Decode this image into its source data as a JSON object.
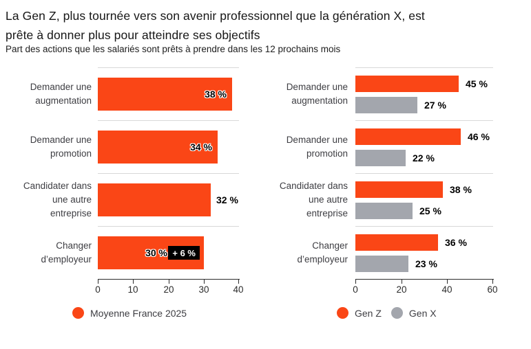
{
  "header": {
    "title_line1": "La Gen Z, plus tournée vers son avenir professionnel que la génération X, est",
    "title_line2": "prête à donner plus pour atteindre ses objectifs",
    "subtitle": "Part des actions que les salariés sont prêts à prendre dans les 12 prochains mois"
  },
  "colors": {
    "orange": "#FA4616",
    "gray": "#A3A6AD",
    "separator": "#D8D8D8",
    "axis": "#2B2B2B",
    "badge_bg": "#000000",
    "badge_text": "#FFFFFF"
  },
  "chart_data": [
    {
      "type": "bar",
      "orientation": "horizontal",
      "categories": [
        [
          "Demander une",
          "augmentation"
        ],
        [
          "Demander une",
          "promotion"
        ],
        [
          "Candidater dans",
          "une autre",
          "entreprise"
        ],
        [
          "Changer",
          "d’employeur"
        ]
      ],
      "series": [
        {
          "name": "Moyenne France 2025",
          "color": "orange",
          "values": [
            38,
            34,
            32,
            30
          ],
          "labels": [
            "38 %",
            "34 %",
            "32 %",
            "30 %"
          ],
          "label_placement": [
            "inside",
            "inside",
            "outside",
            "inside"
          ]
        }
      ],
      "annotations": [
        {
          "row": 3,
          "text": "+ 6 %"
        }
      ],
      "xlim": [
        0,
        40
      ],
      "xticks": [
        "0",
        "10",
        "20",
        "30",
        "40"
      ],
      "legend": [
        {
          "label": "Moyenne France 2025",
          "color": "orange"
        }
      ],
      "legend_position": "bottom"
    },
    {
      "type": "bar",
      "orientation": "horizontal",
      "categories": [
        [
          "Demander une",
          "augmentation"
        ],
        [
          "Demander une",
          "promotion"
        ],
        [
          "Candidater dans",
          "une autre",
          "entreprise"
        ],
        [
          "Changer",
          "d’employeur"
        ]
      ],
      "series": [
        {
          "name": "Gen Z",
          "color": "orange",
          "values": [
            45,
            46,
            38,
            36
          ],
          "labels": [
            "45 %",
            "46 %",
            "38 %",
            "36 %"
          ],
          "label_placement": [
            "outside",
            "outside",
            "outside",
            "outside"
          ]
        },
        {
          "name": "Gen X",
          "color": "gray",
          "values": [
            27,
            22,
            25,
            23
          ],
          "labels": [
            "27 %",
            "22 %",
            "25 %",
            "23 %"
          ],
          "label_placement": [
            "outside",
            "outside",
            "outside",
            "outside"
          ]
        }
      ],
      "annotations": [],
      "xlim": [
        0,
        60
      ],
      "xticks": [
        "0",
        "20",
        "40",
        "60"
      ],
      "legend": [
        {
          "label": "Gen Z",
          "color": "orange"
        },
        {
          "label": "Gen X",
          "color": "gray"
        }
      ],
      "legend_position": "bottom"
    }
  ]
}
